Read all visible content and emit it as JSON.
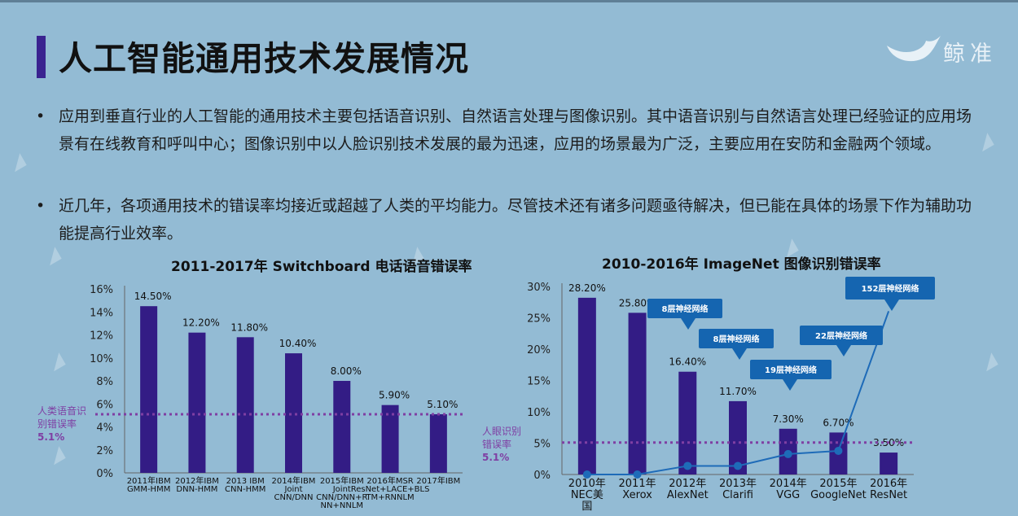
{
  "page": {
    "title": "人工智能通用技术发展情况",
    "brand": "鲸准",
    "bullets": [
      "应用到垂直行业的人工智能的通用技术主要包括语音识别、自然语言处理与图像识别。其中语音识别与自然语言处理已经验证的应用场景有在线教育和呼叫中心；图像识别中以人脸识别技术发展的最为迅速，应用的场景最为广泛，主要应用在安防和金融两个领域。",
      "近几年，各项通用技术的错误率均接近或超越了人类的平均能力。尽管技术还有诸多问题亟待解决，但已能在具体的场景下作为辅助功能提高行业效率。"
    ],
    "bullet_symbol": "•"
  },
  "colors": {
    "bar": "#331c85",
    "human_line": "#7f3fa3",
    "line": "#1e6bb8",
    "callout": "#1565b0",
    "title_bar": "#3a2390"
  },
  "chart_data": [
    {
      "type": "bar",
      "title": "2011-2017年 Switchboard 电话语音错误率",
      "categories": [
        [
          "2011年IBM",
          "GMM-HMM"
        ],
        [
          "2012年IBM",
          "DNN-HMM"
        ],
        [
          "2013 IBM",
          "CNN-HMM"
        ],
        [
          "2014年IBM",
          "Joint",
          "CNN/DNN"
        ],
        [
          "2015年IBM",
          "Joint",
          "CNN/DNN+R",
          "NN+NNLM"
        ],
        [
          "2016年MSR",
          "ResNet+LACE+BLS",
          "TM+RNNLM"
        ],
        [
          "2017年IBM"
        ]
      ],
      "values": [
        14.5,
        12.2,
        11.8,
        10.4,
        8.0,
        5.9,
        5.1
      ],
      "value_labels": [
        "14.50%",
        "12.20%",
        "11.80%",
        "10.40%",
        "8.00%",
        "5.90%",
        "5.10%"
      ],
      "ylim": [
        0,
        16
      ],
      "yticks": [
        "0%",
        "2%",
        "4%",
        "6%",
        "8%",
        "10%",
        "12%",
        "14%",
        "16%"
      ],
      "human_reference": {
        "value": 5.1,
        "label": [
          "人类语音识",
          "别错误率",
          "5.1%"
        ]
      }
    },
    {
      "type": "bar",
      "title": "2010-2016年 ImageNet 图像识别错误率",
      "categories": [
        [
          "2010年",
          "NEC美",
          "国"
        ],
        [
          "2011年",
          "Xerox"
        ],
        [
          "2012年",
          "AlexNet"
        ],
        [
          "2013年",
          "Clarifi"
        ],
        [
          "2014年",
          "VGG"
        ],
        [
          "2015年",
          "GoogleNet"
        ],
        [
          "2016年",
          "ResNet"
        ]
      ],
      "values": [
        28.2,
        25.8,
        16.4,
        11.7,
        7.3,
        6.7,
        3.5
      ],
      "value_labels": [
        "28.20%",
        "25.80%",
        "16.40%",
        "11.70%",
        "7.30%",
        "6.70%",
        "3.50%"
      ],
      "ylim": [
        0,
        30
      ],
      "yticks": [
        "0%",
        "5%",
        "10%",
        "15%",
        "20%",
        "25%",
        "30%"
      ],
      "human_reference": {
        "value": 5.1,
        "label": [
          "人眼识别",
          "错误率",
          "5.1%"
        ]
      },
      "layers_series": {
        "values": [
          0,
          0,
          8,
          8,
          19,
          22,
          152
        ],
        "ylim": [
          0,
          175
        ]
      },
      "callouts": [
        "8层神经网络",
        "8层神经网络",
        "19层神经网络",
        "22层神经网络",
        "152层神经网络"
      ]
    }
  ]
}
